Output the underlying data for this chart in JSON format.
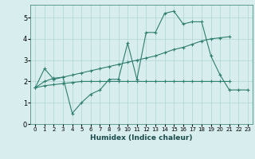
{
  "xlabel": "Humidex (Indice chaleur)",
  "x_values": [
    0,
    1,
    2,
    3,
    4,
    5,
    6,
    7,
    8,
    9,
    10,
    11,
    12,
    13,
    14,
    15,
    16,
    17,
    18,
    19,
    20,
    21,
    22,
    23
  ],
  "series_main": [
    1.7,
    2.6,
    2.1,
    2.2,
    0.5,
    1.0,
    1.4,
    1.6,
    2.1,
    2.1,
    3.8,
    2.1,
    4.3,
    4.3,
    5.2,
    5.3,
    4.7,
    4.8,
    4.8,
    3.2,
    2.3,
    1.6,
    1.6,
    1.6
  ],
  "series_upper": [
    1.7,
    2.0,
    2.15,
    2.2,
    2.3,
    2.4,
    2.5,
    2.6,
    2.7,
    2.8,
    2.9,
    3.0,
    3.1,
    3.2,
    3.35,
    3.5,
    3.6,
    3.75,
    3.9,
    4.0,
    4.05,
    4.1,
    null,
    null
  ],
  "series_lower": [
    1.7,
    1.8,
    1.85,
    1.9,
    1.95,
    2.0,
    2.0,
    2.0,
    2.0,
    2.0,
    2.0,
    2.0,
    2.0,
    2.0,
    2.0,
    2.0,
    2.0,
    2.0,
    2.0,
    2.0,
    2.0,
    2.0,
    null,
    null
  ],
  "line_color": "#2e7d6e",
  "bg_color": "#d8eeee",
  "grid_color": "#b0d4d4",
  "ylim": [
    0,
    5.6
  ],
  "yticks": [
    0,
    1,
    2,
    3,
    4,
    5
  ],
  "xlim": [
    -0.5,
    23.5
  ]
}
